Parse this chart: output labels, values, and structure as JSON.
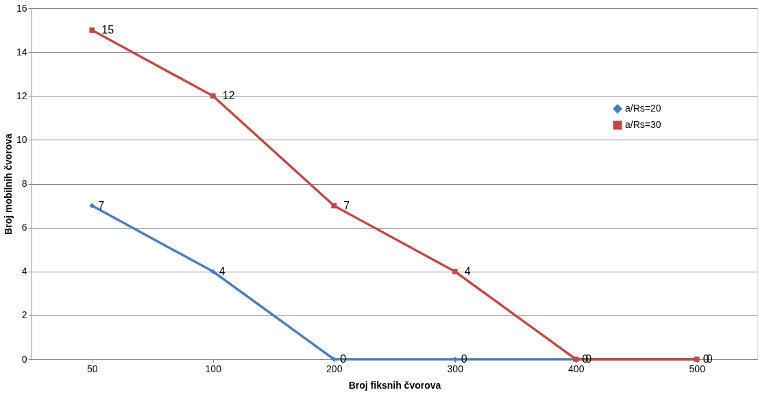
{
  "chart_data": {
    "type": "line",
    "xlabel": "Broj fiksnih čvorova",
    "ylabel": "Broj mobilnih čvorova",
    "categories": [
      "50",
      "100",
      "200",
      "300",
      "400",
      "500"
    ],
    "series": [
      {
        "name": "a/Rs=20",
        "color": "#4a7ebb",
        "marker": "diamond",
        "values": [
          7,
          4,
          0,
          0,
          0,
          0
        ]
      },
      {
        "name": "a/Rs=30",
        "color": "#be4b48",
        "marker": "square",
        "values": [
          15,
          12,
          7,
          4,
          0,
          0
        ]
      }
    ],
    "ylim": [
      0,
      16
    ],
    "yticks": [
      0,
      2,
      4,
      6,
      8,
      10,
      12,
      14,
      16
    ],
    "grid": "y",
    "legend": "top right",
    "data_labels": true,
    "line_style": "solid"
  }
}
